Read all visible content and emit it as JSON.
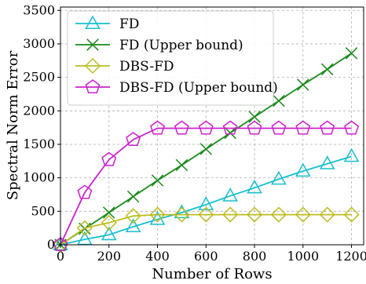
{
  "chart_data": {
    "type": "line",
    "xlabel": "Number of Rows",
    "ylabel": "Spectral Norm Error",
    "xlim": [
      0,
      1250
    ],
    "ylim": [
      0,
      3550
    ],
    "x_ticks": [
      0,
      200,
      400,
      600,
      800,
      1000,
      1200
    ],
    "y_ticks": [
      0,
      500,
      1000,
      1500,
      2000,
      2500,
      3000,
      3500
    ],
    "grid": true,
    "legend_position": "top-left",
    "x": [
      0,
      100,
      200,
      300,
      400,
      500,
      600,
      700,
      800,
      900,
      1000,
      1100,
      1200
    ],
    "series": [
      {
        "name": "FD",
        "marker": "triangle",
        "color": "#17becf",
        "values": [
          0,
          80,
          150,
          270,
          380,
          480,
          600,
          730,
          850,
          980,
          1100,
          1210,
          1320
        ]
      },
      {
        "name": "FD (Upper bound)",
        "marker": "x",
        "color": "#1a8a1a",
        "values": [
          0,
          240,
          480,
          720,
          960,
          1190,
          1430,
          1670,
          1910,
          2150,
          2390,
          2620,
          2860
        ]
      },
      {
        "name": "DBS-FD",
        "marker": "diamond",
        "color": "#bcbd22",
        "values": [
          0,
          250,
          330,
          430,
          450,
          450,
          450,
          450,
          450,
          450,
          450,
          450,
          450
        ]
      },
      {
        "name": "DBS-FD (Upper bound)",
        "marker": "pentagon",
        "color": "#cc22cc",
        "values": [
          0,
          780,
          1270,
          1570,
          1740,
          1740,
          1740,
          1740,
          1740,
          1740,
          1740,
          1740,
          1740
        ]
      }
    ]
  }
}
